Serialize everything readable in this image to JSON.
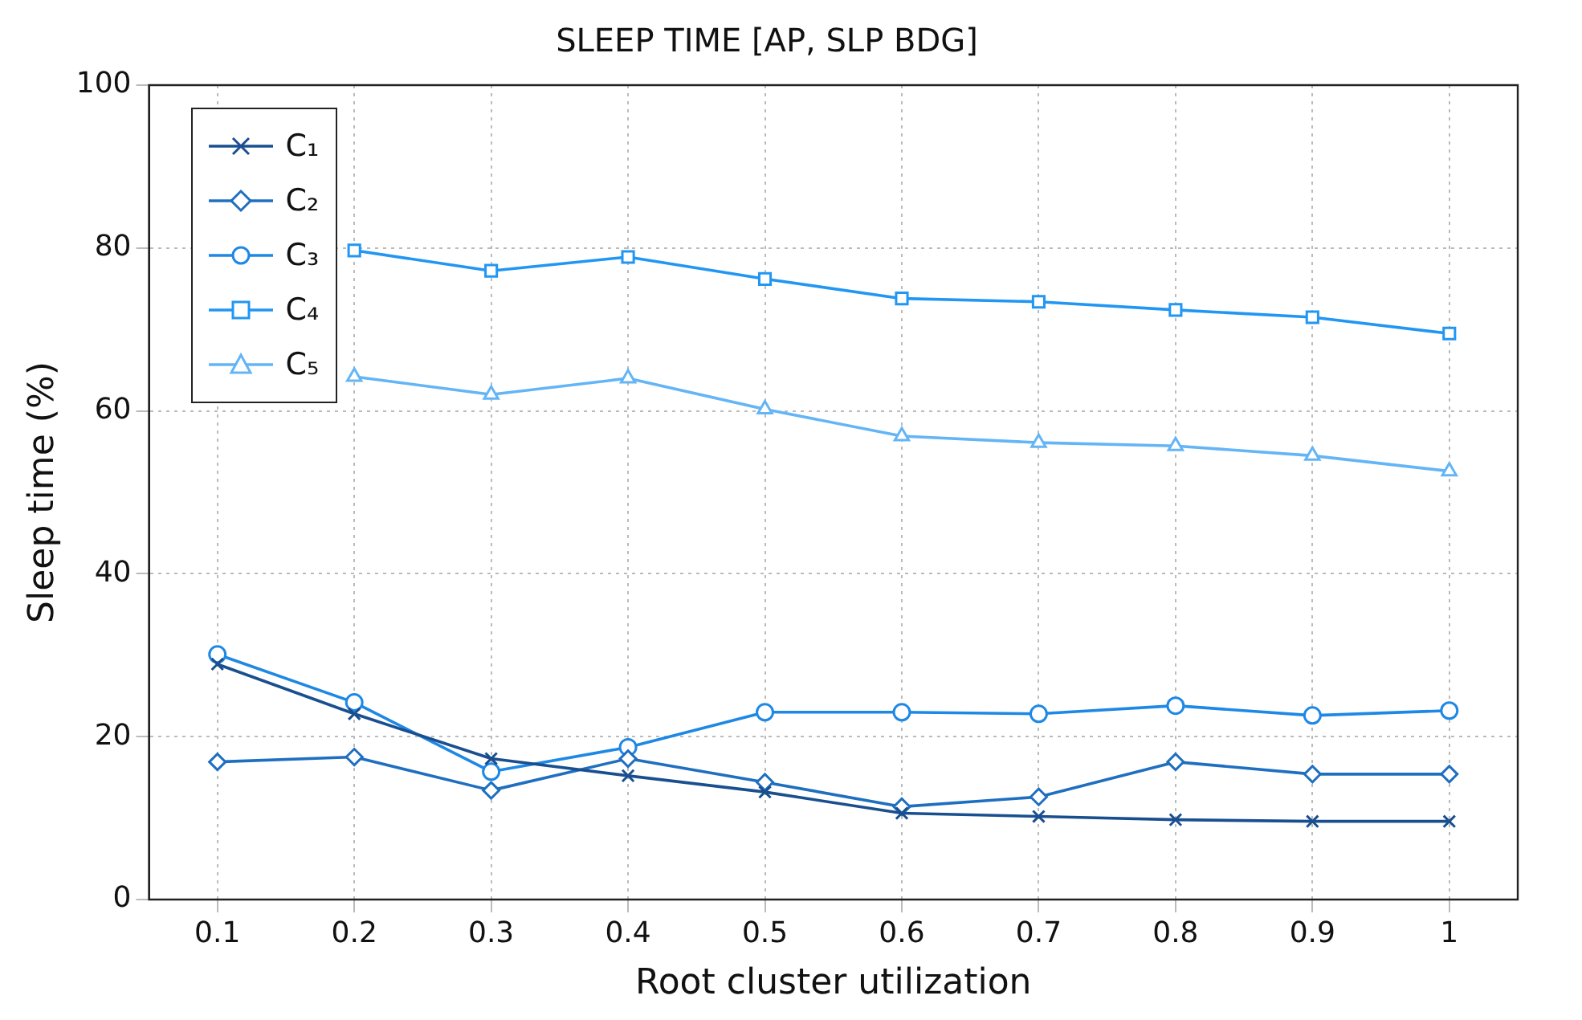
{
  "chart_data": {
    "type": "line",
    "title": "SLEEP TIME [AP, SLP BDG]",
    "xlabel": "Root cluster utilization",
    "ylabel": "Sleep time (%)",
    "x": [
      0.1,
      0.2,
      0.3,
      0.4,
      0.5,
      0.6,
      0.7,
      0.8,
      0.9,
      1
    ],
    "xlim": [
      0.05,
      1.05
    ],
    "xticks": [
      0.1,
      0.2,
      0.3,
      0.4,
      0.5,
      0.6,
      0.7,
      0.8,
      0.9,
      1
    ],
    "ylim": [
      0,
      100
    ],
    "yticks": [
      0,
      20,
      40,
      60,
      80,
      100
    ],
    "grid": true,
    "legend": "top left",
    "line_style": "solid",
    "series": [
      {
        "name": "C₁",
        "color": "#1a4f8f",
        "marker": "cross",
        "values": [
          28.9,
          22.8,
          17.3,
          15.2,
          13.2,
          10.6,
          10.2,
          9.8,
          9.6,
          9.6
        ]
      },
      {
        "name": "C₂",
        "color": "#1f6fc0",
        "marker": "diamond",
        "values": [
          16.9,
          17.5,
          13.4,
          17.3,
          14.4,
          11.4,
          12.6,
          16.9,
          15.4,
          15.4
        ]
      },
      {
        "name": "C₃",
        "color": "#1e88e5",
        "marker": "circle",
        "values": [
          30.1,
          24.2,
          15.7,
          18.7,
          23.0,
          23.0,
          22.8,
          23.8,
          22.6,
          23.2
        ]
      },
      {
        "name": "C₄",
        "color": "#2196f3",
        "marker": "square",
        "values": [
          null,
          79.7,
          77.2,
          78.9,
          76.2,
          73.8,
          73.4,
          72.4,
          71.5,
          69.5
        ]
      },
      {
        "name": "C₅",
        "color": "#64b5f6",
        "marker": "triangle",
        "values": [
          null,
          64.2,
          62.0,
          64.0,
          60.2,
          56.9,
          56.1,
          55.7,
          54.5,
          52.6
        ]
      }
    ]
  }
}
